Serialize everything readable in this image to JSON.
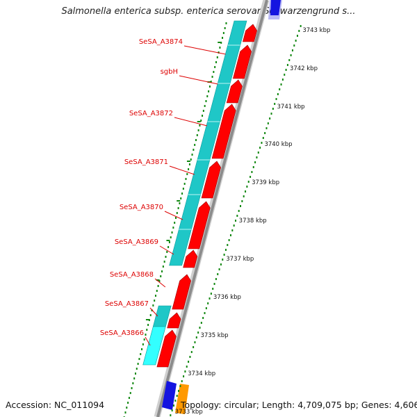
{
  "title": "Salmonella enterica subsp. enterica serovar Schwarzengrund s...",
  "footer": {
    "accession": "Accession: NC_011094",
    "summary": "Topology: circular; Length: 4,709,075 bp; Genes: 4,606"
  },
  "colors": {
    "gene_label": "#dd0000",
    "cds_forward": "#ff0000",
    "orf_block": "#1fc7c7",
    "orf_block_light": "#33ffff",
    "backbone": "#8c8c8c",
    "tick_dots": "#118811",
    "other_feature_blue": "#1414e0",
    "other_feature_orange": "#ff9900"
  },
  "gene_labels": [
    {
      "name": "SeSA_A3874",
      "y": 60
    },
    {
      "name": "sgbH",
      "y": 103
    },
    {
      "name": "SeSA_A3872",
      "y": 163
    },
    {
      "name": "SeSA_A3871",
      "y": 233
    },
    {
      "name": "SeSA_A3870",
      "y": 298
    },
    {
      "name": "SeSA_A3869",
      "y": 348
    },
    {
      "name": "SeSA_A3868",
      "y": 395
    },
    {
      "name": "SeSA_A3867",
      "y": 437
    },
    {
      "name": "SeSA_A3866",
      "y": 479
    }
  ],
  "ticks": [
    {
      "label": "3743 kbp",
      "y": 43
    },
    {
      "label": "3742 kbp",
      "y": 98
    },
    {
      "label": "3741 kbp",
      "y": 153
    },
    {
      "label": "3740 kbp",
      "y": 207
    },
    {
      "label": "3739 kbp",
      "y": 262
    },
    {
      "label": "3738 kbp",
      "y": 317
    },
    {
      "label": "3737 kbp",
      "y": 372
    },
    {
      "label": "3736 kbp",
      "y": 427
    },
    {
      "label": "3735 kbp",
      "y": 482
    },
    {
      "label": "3734 kbp",
      "y": 537
    },
    {
      "label": "3733 kbp",
      "y": 592
    }
  ]
}
